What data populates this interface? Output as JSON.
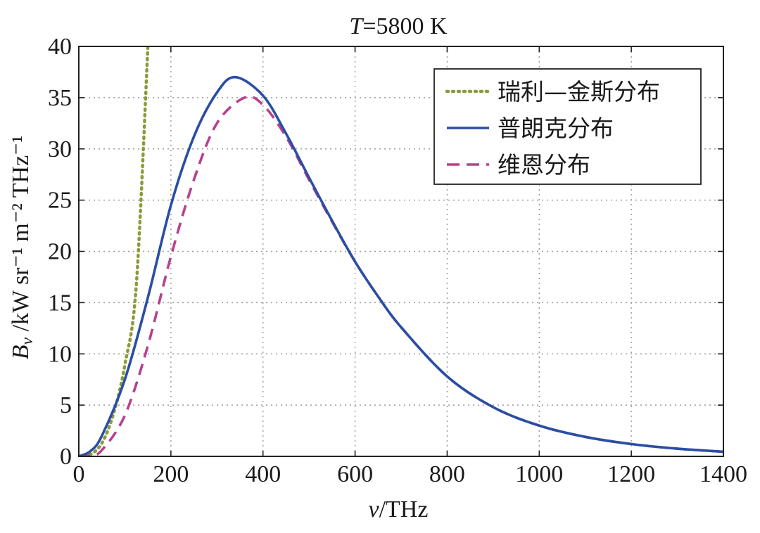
{
  "chart_data": {
    "type": "line",
    "title": "T = 5800 K",
    "title_var": "T",
    "title_rest": "=5800 K",
    "xlabel": "ν/THz",
    "xlabel_var": "ν",
    "xlabel_unit": "/THz",
    "ylabel": "B_ν /kW sr⁻¹ m⁻² THz⁻¹",
    "ylabel_var": "B",
    "ylabel_sub": "ν",
    "ylabel_unit": " /kW sr⁻¹ m⁻² THz⁻¹",
    "xlim": [
      0,
      1400
    ],
    "ylim": [
      0,
      40
    ],
    "xticks": [
      0,
      200,
      400,
      600,
      800,
      1000,
      1200,
      1400
    ],
    "xtick_labels": [
      "0",
      "200",
      "400",
      "600",
      "800",
      "1000",
      "1200",
      "1400"
    ],
    "yticks": [
      0,
      5,
      10,
      15,
      20,
      25,
      30,
      35,
      40
    ],
    "ytick_labels": [
      "0",
      "5",
      "10",
      "15",
      "20",
      "25",
      "30",
      "35",
      "40"
    ],
    "grid": true,
    "legend_position": "top-right",
    "series": [
      {
        "name": "瑞利—金斯分布",
        "key": "rayleigh-jeans",
        "color": "#8c9a3a",
        "style": "dotted",
        "x": [
          0,
          25,
          50,
          75,
          100,
          125,
          150
        ],
        "y": [
          0,
          0.18,
          1.28,
          4.1,
          8.92,
          16.8,
          40.0
        ]
      },
      {
        "name": "普朗克分布",
        "key": "planck",
        "color": "#2a4ea3",
        "style": "solid",
        "x": [
          0,
          25,
          50,
          100,
          150,
          200,
          250,
          300,
          340,
          400,
          450,
          500,
          550,
          600,
          650,
          700,
          800,
          900,
          1000,
          1100,
          1200,
          1300,
          1400
        ],
        "y": [
          0,
          0.5,
          2.0,
          7.5,
          15.5,
          24.5,
          31.2,
          35.5,
          37.0,
          35.2,
          31.5,
          27.2,
          23.0,
          19.0,
          15.6,
          12.6,
          7.8,
          4.8,
          3.0,
          1.9,
          1.2,
          0.75,
          0.45
        ]
      },
      {
        "name": "维恩分布",
        "key": "wien",
        "color": "#b8408f",
        "style": "dashed",
        "x": [
          0,
          25,
          50,
          100,
          150,
          200,
          250,
          300,
          360,
          400,
          450,
          500,
          550,
          600,
          650,
          700,
          800,
          900,
          1000,
          1100,
          1200,
          1300,
          1400
        ],
        "y": [
          0,
          0.1,
          0.6,
          4.0,
          10.8,
          19.5,
          27.0,
          32.5,
          35.0,
          34.3,
          31.2,
          27.0,
          22.9,
          19.0,
          15.6,
          12.6,
          7.8,
          4.8,
          3.0,
          1.9,
          1.2,
          0.75,
          0.45
        ]
      }
    ]
  }
}
